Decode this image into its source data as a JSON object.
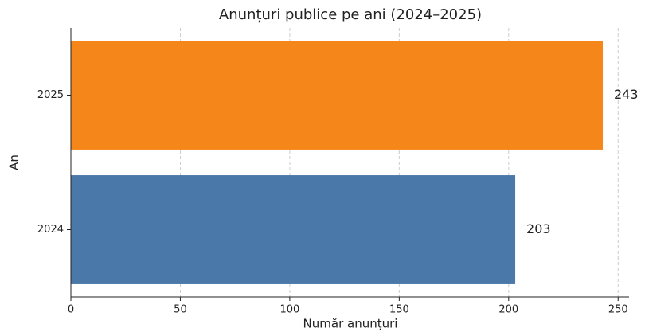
{
  "chart_data": {
    "type": "barh",
    "title": "Anunțuri publice pe ani (2024–2025)",
    "xlabel": "Număr anunțuri",
    "ylabel": "An",
    "categories": [
      "2024",
      "2025"
    ],
    "values": [
      203,
      243
    ],
    "colors": [
      "#4a78a8",
      "#f5861a"
    ],
    "xlim": [
      0,
      255
    ],
    "xticks": [
      0,
      50,
      100,
      150,
      200,
      250
    ],
    "grid": true
  }
}
